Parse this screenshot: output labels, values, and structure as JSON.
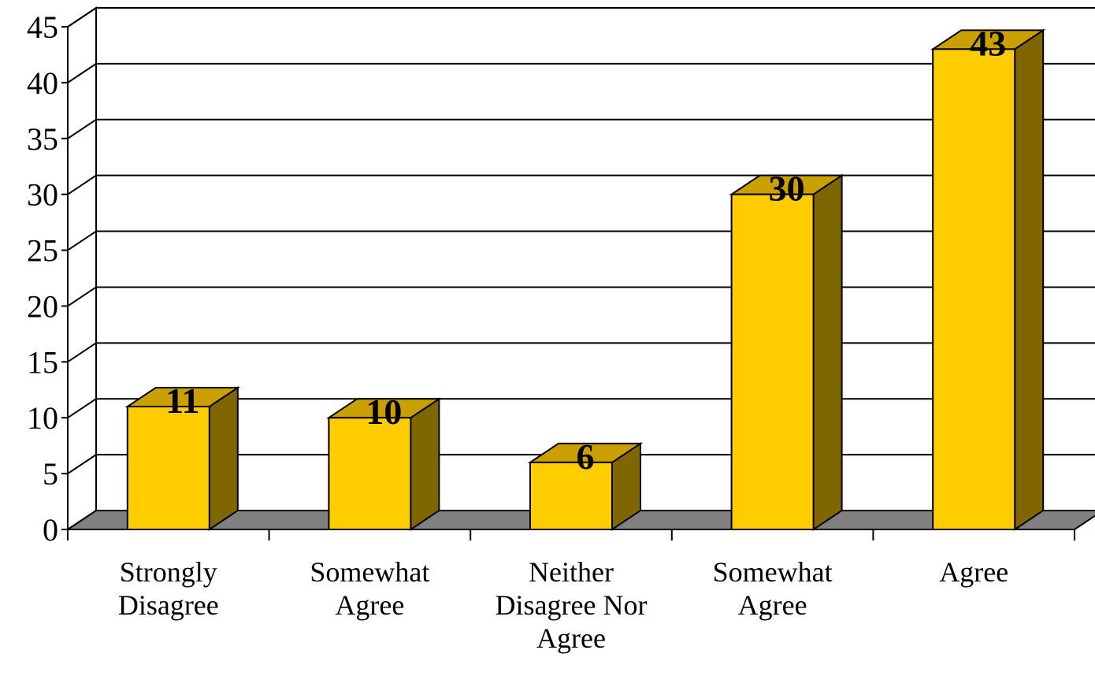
{
  "chart_data": {
    "type": "bar",
    "categories": [
      [
        "Strongly",
        "Disagree"
      ],
      [
        "Somewhat",
        "Agree"
      ],
      [
        "Neither",
        "Disagree Nor",
        "Agree"
      ],
      [
        "Somewhat",
        "Agree"
      ],
      [
        "Agree"
      ]
    ],
    "values": [
      11,
      10,
      6,
      30,
      43
    ],
    "data_labels": [
      "11",
      "10",
      "6",
      "30",
      "43"
    ],
    "yticks": [
      "0",
      "5",
      "10",
      "15",
      "20",
      "25",
      "30",
      "35",
      "40",
      "45"
    ],
    "ylim": [
      0,
      45
    ],
    "grid": true,
    "style": "3d",
    "colors": {
      "bar_front": "#FFCC00",
      "bar_top": "#C9A000",
      "bar_side": "#806600",
      "floor": "#808080"
    }
  }
}
